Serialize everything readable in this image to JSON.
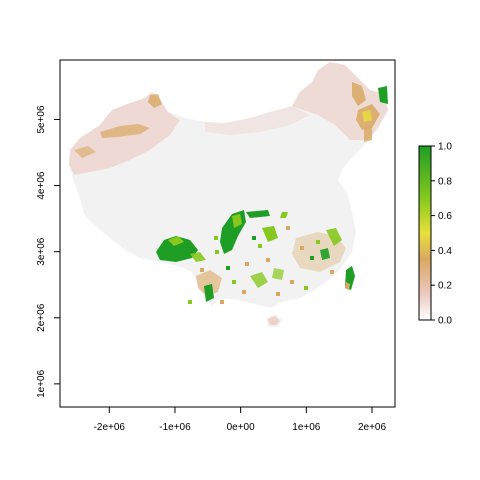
{
  "chart_data": {
    "type": "heatmap",
    "title": "",
    "xlabel": "",
    "ylabel": "",
    "x_ticks": [
      "-2e+06",
      "-1e+06",
      "0e+00",
      "1e+06",
      "2e+06"
    ],
    "x_tick_values": [
      -2000000,
      -1000000,
      0,
      1000000,
      2000000
    ],
    "y_ticks": [
      "1e+06",
      "2e+06",
      "3e+06",
      "4e+06",
      "5e+06"
    ],
    "y_tick_values": [
      1000000,
      2000000,
      3000000,
      4000000,
      5000000
    ],
    "xlim": [
      -2750000,
      2350000
    ],
    "ylim": [
      650000,
      5900000
    ],
    "legend": {
      "position": "right",
      "ticks": [
        "0.0",
        "0.2",
        "0.4",
        "0.6",
        "0.8",
        "1.0"
      ],
      "tick_values": [
        0.0,
        0.2,
        0.4,
        0.6,
        0.8,
        1.0
      ],
      "range": [
        0.0,
        1.0
      ]
    },
    "colors": {
      "zero": "#f2f2f2",
      "low": "#ecc8c0",
      "mid": "#d8a862",
      "yellow": "#e8e03a",
      "lime": "#86c81e",
      "high": "#1e9e24"
    },
    "grid": false
  }
}
